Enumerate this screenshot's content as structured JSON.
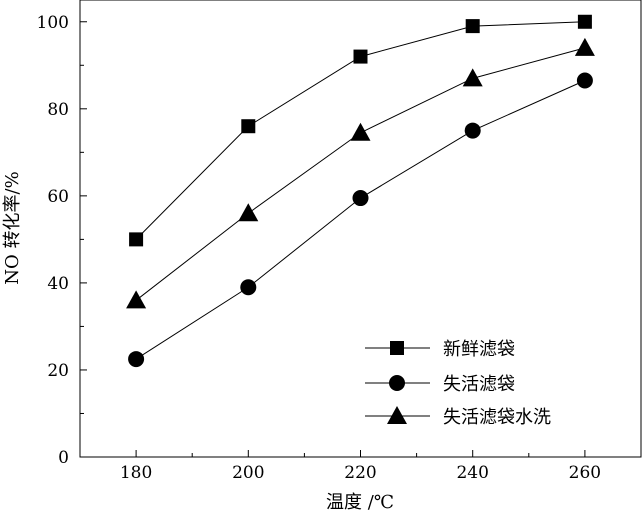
{
  "chart_data": {
    "type": "line",
    "xlabel": "温度 /℃",
    "ylabel": "NO 转化率/%",
    "x": [
      180,
      200,
      220,
      240,
      260
    ],
    "xlim": [
      170,
      270
    ],
    "ylim": [
      0,
      105
    ],
    "xticks": [
      180,
      200,
      220,
      240,
      260
    ],
    "yticks": [
      0,
      20,
      40,
      60,
      80,
      100
    ],
    "grid": false,
    "legend_position": "bottom-right",
    "series": [
      {
        "name": "新鲜滤袋",
        "marker": "square",
        "values": [
          50,
          76,
          92,
          99,
          100
        ]
      },
      {
        "name": "失活滤袋",
        "marker": "circle",
        "values": [
          22.5,
          39,
          59.5,
          75,
          86.5
        ]
      },
      {
        "name": "失活滤袋水洗",
        "marker": "triangle",
        "values": [
          36,
          56,
          74.5,
          87,
          94
        ]
      }
    ]
  }
}
